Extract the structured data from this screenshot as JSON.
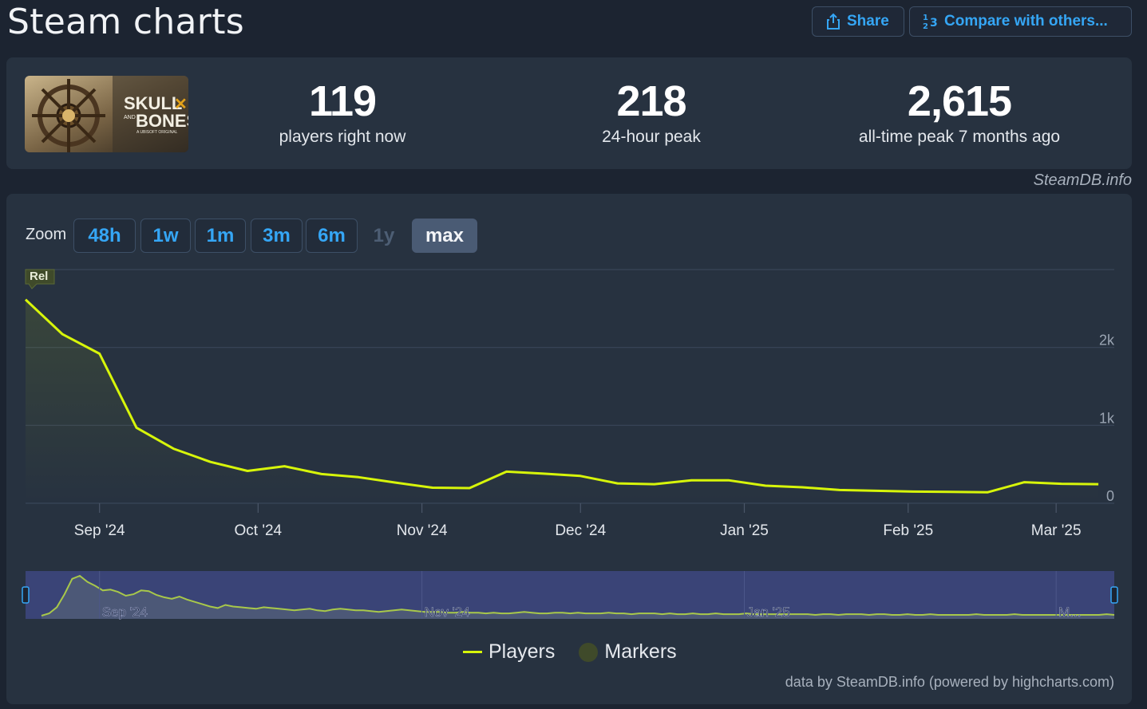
{
  "header": {
    "title": "Steam charts",
    "share_label": "Share",
    "compare_label": "Compare with others..."
  },
  "stats": {
    "game_image_text_top": "SKULL",
    "game_image_text_and": "AND",
    "game_image_text_bottom": "BONES",
    "game_image_text_sub": "A UBISOFT ORIGINAL",
    "current": {
      "value": "119",
      "label": "players right now"
    },
    "peak24": {
      "value": "218",
      "label": "24-hour peak"
    },
    "alltime": {
      "value": "2,615",
      "label": "all-time peak 7 months ago"
    }
  },
  "steamdb_credit": "SteamDB.info",
  "zoom": {
    "label": "Zoom",
    "options": [
      "48h",
      "1w",
      "1m",
      "3m",
      "6m",
      "1y",
      "max"
    ],
    "disabled": [
      "1y"
    ],
    "active": "max"
  },
  "colors": {
    "series": "#d7f50a",
    "background": "#1c2431",
    "panel": "#273240",
    "link": "#35a6f5",
    "navigator_mask": "#3a4477"
  },
  "chart_data": {
    "type": "line",
    "series": [
      {
        "name": "Players",
        "x": [
          "2024-08-18",
          "2024-08-25",
          "2024-09-01",
          "2024-09-08",
          "2024-09-15",
          "2024-09-22",
          "2024-09-29",
          "2024-10-06",
          "2024-10-13",
          "2024-10-20",
          "2024-10-27",
          "2024-11-03",
          "2024-11-10",
          "2024-11-17",
          "2024-11-24",
          "2024-12-01",
          "2024-12-08",
          "2024-12-15",
          "2024-12-22",
          "2024-12-29",
          "2025-01-05",
          "2025-01-12",
          "2025-01-19",
          "2025-01-26",
          "2025-02-02",
          "2025-02-09",
          "2025-02-16",
          "2025-02-23",
          "2025-03-02",
          "2025-03-09"
        ],
        "values": [
          2615,
          2170,
          1920,
          970,
          700,
          530,
          415,
          475,
          375,
          335,
          265,
          200,
          195,
          405,
          380,
          350,
          255,
          245,
          295,
          295,
          225,
          205,
          170,
          160,
          150,
          145,
          140,
          270,
          250,
          245
        ]
      },
      {
        "name": "Markers",
        "points": [
          {
            "x": "2024-08-18",
            "label": "Rel"
          }
        ]
      }
    ],
    "xticks": [
      "Sep '24",
      "Oct '24",
      "Nov '24",
      "Dec '24",
      "Jan '25",
      "Feb '25",
      "Mar '25"
    ],
    "xtick_dates": [
      "2024-09-01",
      "2024-10-01",
      "2024-11-01",
      "2024-12-01",
      "2025-01-01",
      "2025-02-01",
      "2025-03-01"
    ],
    "yticks": [
      "0",
      "1k",
      "2k"
    ],
    "ylim": [
      0,
      3000
    ],
    "grid": true,
    "legend_position": "bottom-center",
    "navigator": {
      "labels": [
        "Sep '24",
        "Nov '24",
        "Jan '25",
        "M..."
      ],
      "label_dates": [
        "2024-09-01",
        "2024-11-01",
        "2025-01-01",
        "2025-03-01"
      ],
      "values": [
        0,
        3,
        11,
        28,
        48,
        52,
        44,
        39,
        33,
        34,
        31,
        26,
        28,
        33,
        32,
        27,
        24,
        22,
        25,
        21,
        18,
        15,
        12,
        10,
        14,
        12,
        11,
        10,
        9,
        11,
        10,
        9,
        8,
        7,
        8,
        9,
        7,
        6,
        8,
        9,
        8,
        7,
        7,
        6,
        5,
        6,
        7,
        8,
        7,
        6,
        5,
        5,
        5,
        4,
        4,
        5,
        4,
        4,
        3,
        4,
        3,
        3,
        4,
        5,
        4,
        3,
        3,
        4,
        4,
        3,
        4,
        3,
        3,
        3,
        4,
        3,
        3,
        2,
        3,
        3,
        3,
        2,
        3,
        2,
        2,
        3,
        2,
        2,
        3,
        2,
        2,
        2,
        3,
        2,
        2,
        2,
        2,
        2,
        2,
        2,
        2,
        1,
        2,
        2,
        1,
        2,
        2,
        2,
        1,
        2,
        2,
        1,
        1,
        2,
        1,
        1,
        2,
        1,
        1,
        1,
        1,
        1,
        2,
        1,
        1,
        1,
        1,
        2,
        1,
        1,
        1,
        1,
        1,
        1,
        1,
        1,
        1,
        1,
        1,
        2,
        1
      ]
    }
  },
  "legend": {
    "players": "Players",
    "markers": "Markers"
  },
  "footer_credit": "data by SteamDB.info (powered by highcharts.com)"
}
